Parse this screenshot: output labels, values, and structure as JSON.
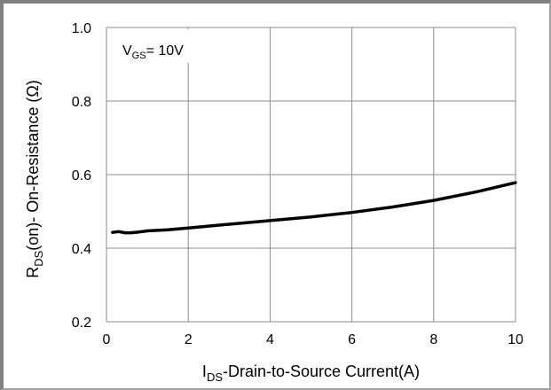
{
  "chart_data": {
    "type": "line",
    "xlabel_main": "I",
    "xlabel_sub": "DS",
    "xlabel_rest": "-Drain-to-Source  Current(A)",
    "ylabel_main": "R",
    "ylabel_sub": "DS",
    "ylabel_rest": "(on)- On-Resistance (Ω)",
    "xlim": [
      0,
      10
    ],
    "ylim": [
      0.2,
      1.0
    ],
    "xticks": [
      0,
      2,
      4,
      6,
      8,
      10
    ],
    "yticks": [
      0.2,
      0.4,
      0.6,
      0.8,
      1.0
    ],
    "xtick_labels": [
      "0",
      "2",
      "4",
      "6",
      "8",
      "10"
    ],
    "ytick_labels": [
      "0.2",
      "0.4",
      "0.6",
      "0.8",
      "1.0"
    ],
    "grid": true,
    "annotation": {
      "main": "V",
      "sub": "GS",
      "rest": "= 10V"
    },
    "series": [
      {
        "color": "#000000",
        "x": [
          0.15,
          0.3,
          0.45,
          0.6,
          0.8,
          1.0,
          1.5,
          2.0,
          3.0,
          4.0,
          5.0,
          6.0,
          7.0,
          8.0,
          9.0,
          10.0
        ],
        "values": [
          0.443,
          0.445,
          0.442,
          0.442,
          0.444,
          0.447,
          0.45,
          0.455,
          0.465,
          0.475,
          0.485,
          0.497,
          0.512,
          0.53,
          0.552,
          0.578
        ]
      }
    ]
  }
}
